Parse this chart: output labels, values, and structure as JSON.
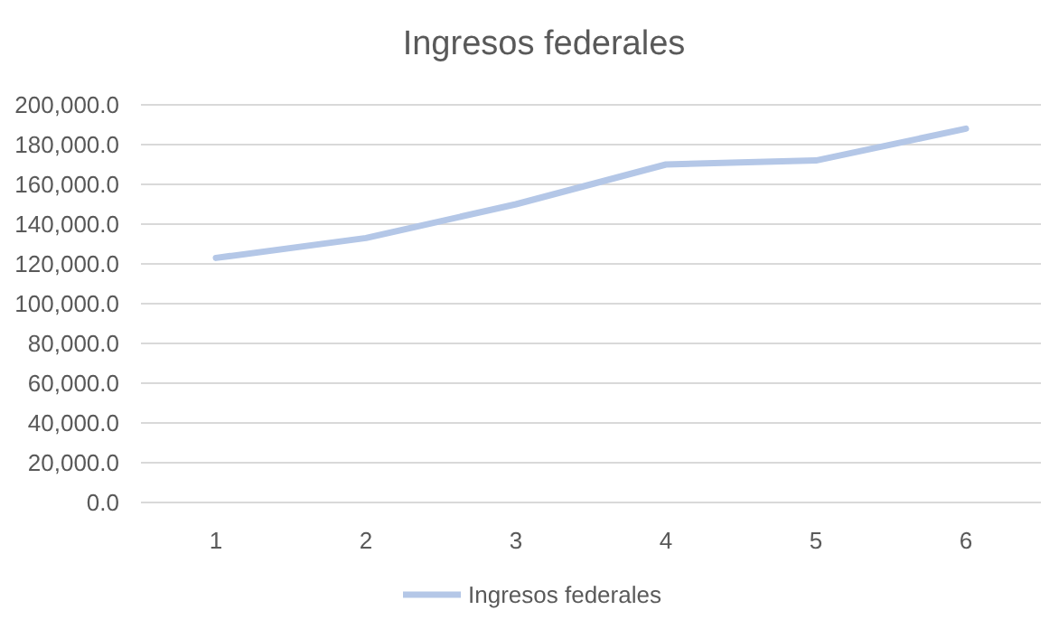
{
  "chart_data": {
    "type": "line",
    "title": "Ingresos federales",
    "categories": [
      "1",
      "2",
      "3",
      "4",
      "5",
      "6"
    ],
    "series": [
      {
        "name": "Ingresos federales",
        "color": "#b4c7e7",
        "values": [
          123000,
          133000,
          150000,
          170000,
          172000,
          188000
        ]
      }
    ],
    "ylim": [
      0,
      200000
    ],
    "yticks": [
      {
        "value": 0,
        "label": "0.0"
      },
      {
        "value": 20000,
        "label": "20,000.0"
      },
      {
        "value": 40000,
        "label": "40,000.0"
      },
      {
        "value": 60000,
        "label": "60,000.0"
      },
      {
        "value": 80000,
        "label": "80,000.0"
      },
      {
        "value": 100000,
        "label": "100,000.0"
      },
      {
        "value": 120000,
        "label": "120,000.0"
      },
      {
        "value": 140000,
        "label": "140,000.0"
      },
      {
        "value": 160000,
        "label": "160,000.0"
      },
      {
        "value": 180000,
        "label": "180,000.0"
      },
      {
        "value": 200000,
        "label": "200,000.0"
      }
    ],
    "grid": "y",
    "legend": "bottom",
    "marker": "none",
    "line_style": "solid"
  }
}
